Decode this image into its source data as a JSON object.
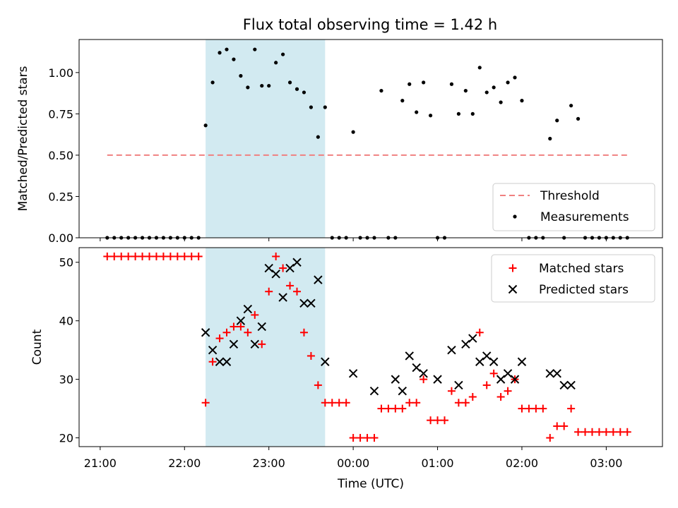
{
  "title": "Flux total observing time = 1.42 h",
  "colors": {
    "threshold": "#f08080",
    "measurement": "#000000",
    "matched": "#ff0000",
    "predicted": "#000000",
    "highlight": "#add8e6"
  },
  "chart_data": [
    {
      "type": "scatter",
      "ylabel": "Matched/Predicted stars",
      "xlim": [
        "20:45",
        "03:40"
      ],
      "ylim": [
        0,
        1.2
      ],
      "yticks": [
        "0.00",
        "0.25",
        "0.50",
        "0.75",
        "1.00"
      ],
      "highlight_span": [
        "22:15",
        "23:40"
      ],
      "legend": {
        "placement": "lower right",
        "entries": [
          "Threshold",
          "Measurements"
        ]
      },
      "threshold": {
        "name": "Threshold",
        "y": 0.5,
        "x_range": [
          "21:05",
          "03:15"
        ]
      },
      "series": [
        {
          "name": "Measurements",
          "x": [
            "21:05",
            "21:10",
            "21:15",
            "21:20",
            "21:25",
            "21:30",
            "21:35",
            "21:40",
            "21:45",
            "21:50",
            "21:55",
            "22:00",
            "22:05",
            "22:10",
            "22:15",
            "22:20",
            "22:25",
            "22:30",
            "22:35",
            "22:40",
            "22:45",
            "22:50",
            "22:55",
            "23:00",
            "23:05",
            "23:10",
            "23:15",
            "23:20",
            "23:25",
            "23:30",
            "23:35",
            "23:40",
            "23:45",
            "23:50",
            "23:55",
            "00:00",
            "00:05",
            "00:10",
            "00:15",
            "00:20",
            "00:25",
            "00:30",
            "00:35",
            "00:40",
            "00:45",
            "00:50",
            "00:55",
            "01:00",
            "01:05",
            "01:10",
            "01:15",
            "01:20",
            "01:25",
            "01:30",
            "01:35",
            "01:40",
            "01:45",
            "01:50",
            "01:55",
            "02:00",
            "02:05",
            "02:10",
            "02:15",
            "02:20",
            "02:25",
            "02:30",
            "02:35",
            "02:40",
            "02:45",
            "02:50",
            "02:55",
            "03:00",
            "03:05",
            "03:10",
            "03:15"
          ],
          "y": [
            0,
            0,
            0,
            0,
            0,
            0,
            0,
            0,
            0,
            0,
            0,
            0,
            0,
            0,
            0.68,
            0.94,
            1.12,
            1.14,
            1.08,
            0.98,
            0.91,
            1.14,
            0.92,
            0.92,
            1.06,
            1.11,
            0.94,
            0.9,
            0.88,
            0.79,
            0.61,
            0.79,
            0,
            0,
            0,
            0.64,
            0,
            0,
            0,
            0.89,
            0,
            0,
            0.83,
            0.93,
            0.76,
            0.94,
            0.74,
            0,
            0,
            0.93,
            0.75,
            0.89,
            0.75,
            1.03,
            0.88,
            0.91,
            0.82,
            0.94,
            0.97,
            0.83,
            0,
            0,
            0,
            0.6,
            0.71,
            0,
            0.8,
            0.72,
            0,
            0,
            0,
            0,
            0,
            0,
            0
          ]
        }
      ]
    },
    {
      "type": "scatter",
      "xlabel": "Time (UTC)",
      "ylabel": "Count",
      "xlim": [
        "20:45",
        "03:40"
      ],
      "ylim": [
        18.5,
        52.5
      ],
      "yticks": [
        "20",
        "30",
        "40",
        "50"
      ],
      "xticks": [
        "21:00",
        "22:00",
        "23:00",
        "00:00",
        "01:00",
        "02:00",
        "03:00"
      ],
      "highlight_span": [
        "22:15",
        "23:40"
      ],
      "legend": {
        "placement": "upper right",
        "entries": [
          "Matched stars",
          "Predicted stars"
        ]
      },
      "series": [
        {
          "name": "Matched stars",
          "marker": "plus",
          "x": [
            "21:05",
            "21:10",
            "21:15",
            "21:20",
            "21:25",
            "21:30",
            "21:35",
            "21:40",
            "21:45",
            "21:50",
            "21:55",
            "22:00",
            "22:05",
            "22:10",
            "22:15",
            "22:20",
            "22:25",
            "22:30",
            "22:35",
            "22:40",
            "22:45",
            "22:50",
            "22:55",
            "23:00",
            "23:05",
            "23:10",
            "23:15",
            "23:20",
            "23:25",
            "23:30",
            "23:35",
            "23:40",
            "23:45",
            "23:50",
            "23:55",
            "00:00",
            "00:05",
            "00:10",
            "00:15",
            "00:20",
            "00:25",
            "00:30",
            "00:35",
            "00:40",
            "00:45",
            "00:50",
            "00:55",
            "01:00",
            "01:05",
            "01:10",
            "01:15",
            "01:20",
            "01:25",
            "01:30",
            "01:35",
            "01:40",
            "01:45",
            "01:50",
            "01:55",
            "02:00",
            "02:05",
            "02:10",
            "02:15",
            "02:20",
            "02:25",
            "02:30",
            "02:35",
            "02:40",
            "02:45",
            "02:50",
            "02:55",
            "03:00",
            "03:05",
            "03:10",
            "03:15"
          ],
          "y": [
            51,
            51,
            51,
            51,
            51,
            51,
            51,
            51,
            51,
            51,
            51,
            51,
            51,
            51,
            26,
            33,
            37,
            38,
            39,
            39,
            38,
            41,
            36,
            45,
            51,
            49,
            46,
            45,
            38,
            34,
            29,
            26,
            26,
            26,
            26,
            20,
            20,
            20,
            20,
            25,
            25,
            25,
            25,
            26,
            26,
            30,
            23,
            23,
            23,
            28,
            26,
            26,
            27,
            38,
            29,
            31,
            27,
            28,
            30,
            25,
            25,
            25,
            25,
            20,
            22,
            22,
            25,
            21,
            21,
            21,
            21,
            21,
            21,
            21,
            21
          ]
        },
        {
          "name": "Predicted stars",
          "marker": "x",
          "x": [
            "22:15",
            "22:20",
            "22:25",
            "22:30",
            "22:35",
            "22:40",
            "22:45",
            "22:50",
            "22:55",
            "23:00",
            "23:05",
            "23:10",
            "23:15",
            "23:20",
            "23:25",
            "23:30",
            "23:35",
            "23:40",
            "00:00",
            "00:15",
            "00:30",
            "00:35",
            "00:40",
            "00:45",
            "00:50",
            "01:00",
            "01:10",
            "01:15",
            "01:20",
            "01:25",
            "01:30",
            "01:35",
            "01:40",
            "01:45",
            "01:50",
            "01:55",
            "02:00",
            "02:20",
            "02:25",
            "02:30",
            "02:35"
          ],
          "y": [
            38,
            35,
            33,
            33,
            36,
            40,
            42,
            36,
            39,
            49,
            48,
            44,
            49,
            50,
            43,
            43,
            47,
            33,
            31,
            28,
            30,
            28,
            34,
            32,
            31,
            30,
            35,
            29,
            36,
            37,
            33,
            34,
            33,
            30,
            31,
            30,
            33,
            31,
            31,
            29,
            29
          ]
        }
      ]
    }
  ]
}
